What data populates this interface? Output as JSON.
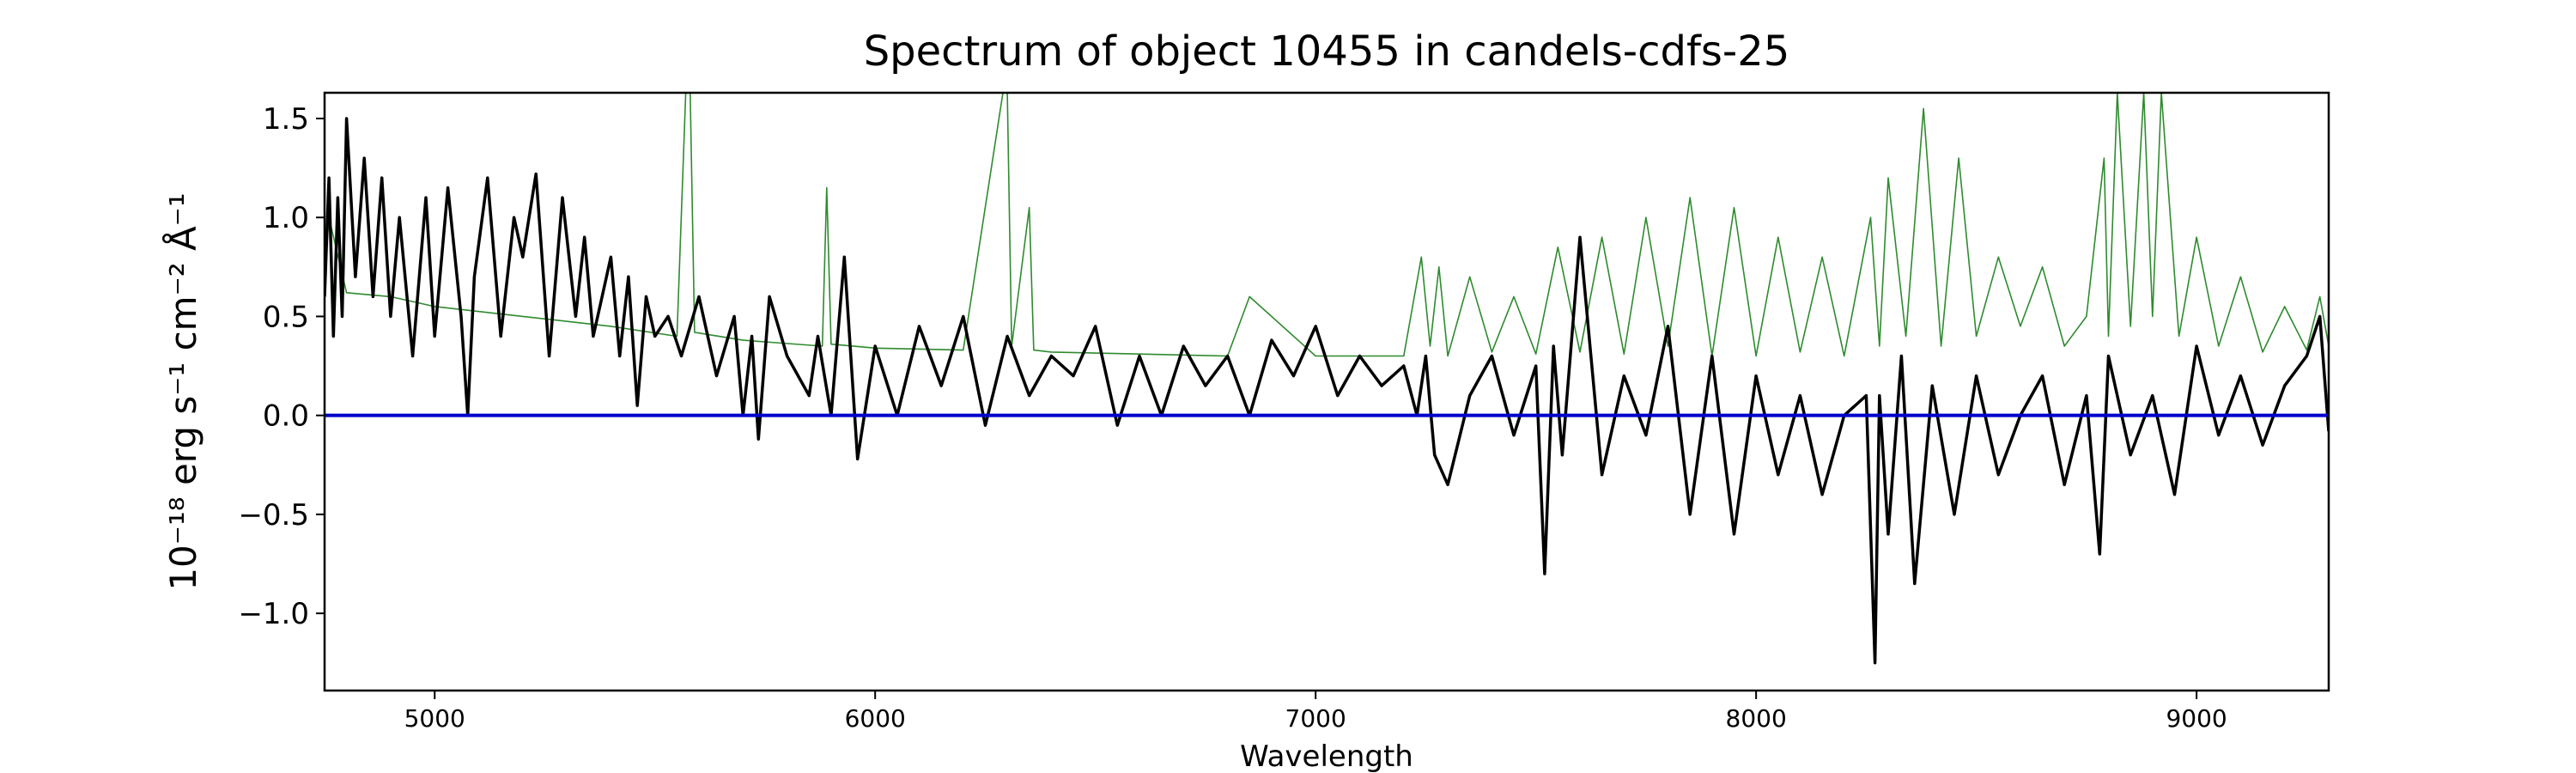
{
  "chart_data": {
    "type": "line",
    "title": "Spectrum of object 10455 in candels-cdfs-25",
    "xlabel": "Wavelength",
    "ylabel": "10⁻¹⁸ erg s⁻¹ cm⁻² Å⁻¹",
    "xlim": [
      4750,
      9300
    ],
    "ylim": [
      -1.39,
      1.63
    ],
    "xticks": [
      5000,
      6000,
      7000,
      8000,
      9000
    ],
    "yticks": [
      -1.0,
      -0.5,
      0.0,
      0.5,
      1.0,
      1.5
    ],
    "ytick_labels": [
      "−1.0",
      "−0.5",
      "0.0",
      "0.5",
      "1.0",
      "1.5"
    ],
    "grid": false,
    "legend": "none",
    "zero_line": {
      "y": 0.0,
      "color": "#0000cc"
    },
    "series": [
      {
        "role": "flux",
        "color": "#000000",
        "x": [
          4750,
          4760,
          4770,
          4780,
          4790,
          4800,
          4820,
          4840,
          4860,
          4880,
          4900,
          4920,
          4950,
          4980,
          5000,
          5030,
          5060,
          5075,
          5090,
          5120,
          5150,
          5180,
          5200,
          5230,
          5260,
          5290,
          5320,
          5340,
          5360,
          5380,
          5400,
          5420,
          5440,
          5460,
          5480,
          5500,
          5530,
          5560,
          5600,
          5640,
          5680,
          5700,
          5720,
          5735,
          5760,
          5800,
          5850,
          5870,
          5900,
          5930,
          5960,
          6000,
          6050,
          6100,
          6150,
          6200,
          6250,
          6300,
          6350,
          6400,
          6450,
          6500,
          6550,
          6600,
          6650,
          6700,
          6750,
          6800,
          6850,
          6900,
          6950,
          7000,
          7050,
          7100,
          7150,
          7200,
          7230,
          7250,
          7270,
          7300,
          7350,
          7400,
          7450,
          7500,
          7520,
          7540,
          7560,
          7600,
          7650,
          7700,
          7750,
          7800,
          7850,
          7900,
          7950,
          8000,
          8050,
          8100,
          8150,
          8200,
          8250,
          8270,
          8280,
          8300,
          8330,
          8360,
          8400,
          8450,
          8500,
          8550,
          8600,
          8650,
          8700,
          8750,
          8780,
          8800,
          8850,
          8900,
          8950,
          9000,
          9050,
          9100,
          9150,
          9200,
          9250,
          9280,
          9300
        ],
        "y": [
          0.6,
          1.2,
          0.4,
          1.1,
          0.5,
          1.5,
          0.7,
          1.3,
          0.6,
          1.2,
          0.5,
          1.0,
          0.3,
          1.1,
          0.4,
          1.15,
          0.5,
          0.0,
          0.7,
          1.2,
          0.4,
          1.0,
          0.8,
          1.22,
          0.3,
          1.1,
          0.5,
          0.9,
          0.4,
          0.6,
          0.8,
          0.3,
          0.7,
          0.05,
          0.6,
          0.4,
          0.5,
          0.3,
          0.6,
          0.2,
          0.5,
          0.0,
          0.4,
          -0.12,
          0.6,
          0.3,
          0.1,
          0.4,
          0.0,
          0.8,
          -0.22,
          0.35,
          0.0,
          0.45,
          0.15,
          0.5,
          -0.05,
          0.4,
          0.1,
          0.3,
          0.2,
          0.45,
          -0.05,
          0.3,
          0.0,
          0.35,
          0.15,
          0.3,
          0.0,
          0.38,
          0.2,
          0.45,
          0.1,
          0.3,
          0.15,
          0.25,
          0.0,
          0.3,
          -0.2,
          -0.35,
          0.1,
          0.3,
          -0.1,
          0.25,
          -0.8,
          0.35,
          -0.2,
          0.9,
          -0.3,
          0.2,
          -0.1,
          0.45,
          -0.5,
          0.3,
          -0.6,
          0.2,
          -0.3,
          0.1,
          -0.4,
          0.0,
          0.1,
          -1.25,
          0.1,
          -0.6,
          0.3,
          -0.85,
          0.15,
          -0.5,
          0.2,
          -0.3,
          0.0,
          0.2,
          -0.35,
          0.1,
          -0.7,
          0.3,
          -0.2,
          0.1,
          -0.4,
          0.35,
          -0.1,
          0.2,
          -0.15,
          0.15,
          0.3,
          0.5,
          -0.08
        ]
      },
      {
        "role": "error",
        "color": "#2e8b2e",
        "x": [
          4750,
          4760,
          4800,
          4900,
          5000,
          5200,
          5400,
          5550,
          5570,
          5580,
          5590,
          5700,
          5880,
          5890,
          5900,
          6000,
          6200,
          6290,
          6300,
          6310,
          6350,
          6360,
          6400,
          6600,
          6800,
          6850,
          7000,
          7200,
          7240,
          7260,
          7280,
          7300,
          7350,
          7400,
          7450,
          7500,
          7550,
          7600,
          7650,
          7700,
          7750,
          7800,
          7850,
          7900,
          7950,
          8000,
          8050,
          8100,
          8150,
          8200,
          8260,
          8280,
          8300,
          8340,
          8380,
          8420,
          8460,
          8500,
          8550,
          8600,
          8650,
          8700,
          8750,
          8790,
          8800,
          8820,
          8850,
          8880,
          8900,
          8920,
          8960,
          9000,
          9050,
          9100,
          9150,
          9200,
          9250,
          9280,
          9300
        ],
        "y": [
          0.7,
          1.0,
          0.62,
          0.6,
          0.55,
          0.5,
          0.45,
          0.4,
          1.63,
          1.63,
          0.42,
          0.38,
          0.35,
          1.15,
          0.36,
          0.34,
          0.33,
          1.63,
          1.63,
          0.35,
          1.05,
          0.33,
          0.32,
          0.31,
          0.3,
          0.6,
          0.3,
          0.3,
          0.8,
          0.35,
          0.75,
          0.3,
          0.7,
          0.32,
          0.6,
          0.31,
          0.85,
          0.32,
          0.9,
          0.31,
          1.0,
          0.35,
          1.1,
          0.3,
          1.05,
          0.3,
          0.9,
          0.32,
          0.8,
          0.3,
          1.0,
          0.35,
          1.2,
          0.4,
          1.55,
          0.35,
          1.3,
          0.4,
          0.8,
          0.45,
          0.75,
          0.35,
          0.5,
          1.3,
          0.4,
          1.63,
          0.45,
          1.63,
          0.5,
          1.63,
          0.4,
          0.9,
          0.35,
          0.7,
          0.32,
          0.55,
          0.33,
          0.6,
          0.35
        ]
      }
    ]
  }
}
